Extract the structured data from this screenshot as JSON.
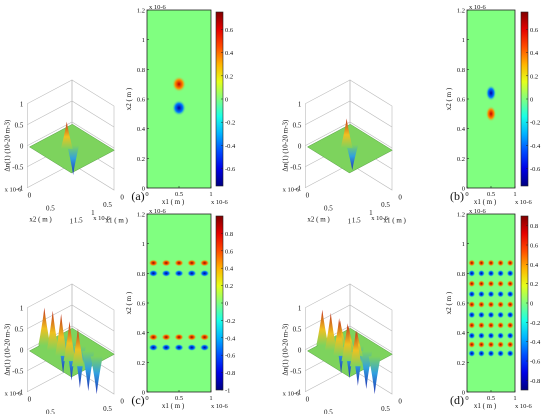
{
  "figure": {
    "title": ""
  },
  "chart_data": [
    {
      "id": "a",
      "type": "heatmap",
      "panel_label": "(a)",
      "surface": {
        "zlabel": "Δn(1) (10-20 m-3)",
        "zticks": [
          "1",
          "0.5",
          "0",
          "-0.5",
          "-1"
        ],
        "x_label": "x2 ( m )",
        "x_exp": "x 10-6",
        "x_ticks": [
          "0",
          "0.5",
          "1"
        ],
        "y_label": "x1 ( m )",
        "y_exp": "x 10-6",
        "y_ticks": [
          "0",
          "0.5",
          "1",
          "1.5"
        ],
        "peaks": [
          {
            "x": 0.5,
            "y": 0.7,
            "value": 0.65
          },
          {
            "x": 0.5,
            "y": 0.53,
            "value": -0.7
          }
        ]
      },
      "map": {
        "xlabel": "x1 ( m )",
        "x_exp": "x 10-6",
        "ylabel": "x2 ( m )",
        "y_exp": "x 10-6",
        "x_ticks": [
          "0",
          "0.5",
          "1"
        ],
        "y_ticks": [
          "1.2",
          "1",
          "0.8",
          "0.6",
          "0.4",
          "0.2",
          "0"
        ],
        "xlim": [
          0,
          1
        ],
        "ylim": [
          0,
          1.2
        ],
        "peaks": [
          {
            "x": 0.5,
            "y": 0.7,
            "value": 0.65
          },
          {
            "x": 0.5,
            "y": 0.54,
            "value": -0.7
          }
        ]
      },
      "colorbar": {
        "ticks": [
          "0.6",
          "0.4",
          "0.2",
          "0",
          "-0.2",
          "-0.4",
          "-0.6"
        ],
        "range": [
          -0.75,
          0.75
        ]
      }
    },
    {
      "id": "b",
      "type": "heatmap",
      "panel_label": "(b)",
      "surface": {
        "zlabel": "Δn(1) (10-20 m-3)",
        "zticks": [
          "1",
          "0.5",
          "0",
          "-0.5",
          "-1"
        ],
        "x_label": "x2 ( m )",
        "x_exp": "x 10-6",
        "x_ticks": [
          "0",
          "0.5",
          "1"
        ],
        "y_label": "x1 ( m )",
        "y_exp": "x 10-6",
        "y_ticks": [
          "0",
          "0.5",
          "1",
          "1.5"
        ],
        "peaks": [
          {
            "x": 0.5,
            "y": 0.65,
            "value": 0.7
          },
          {
            "x": 0.5,
            "y": 0.5,
            "value": -0.6
          }
        ]
      },
      "map": {
        "xlabel": "x1 ( m )",
        "x_exp": "x 10-6",
        "ylabel": "x2 ( m )",
        "y_exp": "x 10-6",
        "x_ticks": [
          "0",
          "0.5",
          "1"
        ],
        "y_ticks": [
          "1.2",
          "1",
          "0.8",
          "0.6",
          "0.4",
          "0.2",
          "0"
        ],
        "xlim": [
          0,
          1
        ],
        "ylim": [
          0,
          1.2
        ],
        "peaks": [
          {
            "x": 0.5,
            "y": 0.64,
            "value": -0.7
          },
          {
            "x": 0.5,
            "y": 0.5,
            "value": 0.65
          }
        ]
      },
      "colorbar": {
        "ticks": [
          "0.6",
          "0.4",
          "0.2",
          "0",
          "-0.2",
          "-0.4",
          "-0.6"
        ],
        "range": [
          -0.75,
          0.75
        ]
      }
    },
    {
      "id": "c",
      "type": "heatmap",
      "panel_label": "(c)",
      "surface": {
        "zlabel": "Δn(1) (10-20 m-3)",
        "zticks": [
          "1",
          "0.5",
          "0",
          "-0.5",
          "-1"
        ],
        "x_label": "x2 ( m )",
        "x_exp": "x 10-6",
        "x_ticks": [
          "0",
          "0.5",
          "1"
        ],
        "y_label": "x1 ( m )",
        "y_exp": "x 10-6",
        "y_ticks": [
          "0",
          "0.5",
          "1",
          "1.5"
        ],
        "peaks": [
          {
            "x": 0.1,
            "y": 0.85,
            "value": 0.9
          },
          {
            "x": 0.3,
            "y": 0.85,
            "value": 0.95
          },
          {
            "x": 0.5,
            "y": 0.85,
            "value": 1.0
          },
          {
            "x": 0.7,
            "y": 0.85,
            "value": 0.95
          },
          {
            "x": 0.9,
            "y": 0.85,
            "value": 0.9
          },
          {
            "x": 0.1,
            "y": 0.35,
            "value": -0.9
          },
          {
            "x": 0.3,
            "y": 0.35,
            "value": -0.95
          },
          {
            "x": 0.5,
            "y": 0.35,
            "value": -1.0
          },
          {
            "x": 0.7,
            "y": 0.35,
            "value": -0.95
          },
          {
            "x": 0.9,
            "y": 0.35,
            "value": -0.9
          }
        ]
      },
      "map": {
        "xlabel": "x1 ( m )",
        "x_exp": "x 10-6",
        "ylabel": "x2 ( m )",
        "y_exp": "x 10-6",
        "x_ticks": [
          "0",
          "0.5",
          "1"
        ],
        "y_ticks": [
          "1.2",
          "1",
          "0.8",
          "0.6",
          "0.4",
          "0.2",
          "0"
        ],
        "xlim": [
          0,
          1
        ],
        "ylim": [
          0,
          1.2
        ],
        "row_pairs": [
          {
            "y_upper": 0.87,
            "y_lower": 0.8
          },
          {
            "y_upper": 0.37,
            "y_lower": 0.3
          }
        ],
        "columns": [
          0.1,
          0.3,
          0.5,
          0.7,
          0.9
        ]
      },
      "colorbar": {
        "ticks": [
          "0.8",
          "0.6",
          "0.4",
          "0.2",
          "0",
          "-0.2",
          "-0.4",
          "-0.6",
          "-0.8",
          "-1"
        ],
        "range": [
          -1,
          1
        ]
      }
    },
    {
      "id": "d",
      "type": "heatmap",
      "panel_label": "(d)",
      "surface": {
        "zlabel": "Δn(1) (10-20 m-3)",
        "zticks": [
          "1",
          "0.5",
          "0",
          "-0.5",
          "-1"
        ],
        "x_label": "x2 ( m )",
        "x_exp": "x 10-6",
        "x_ticks": [
          "0",
          "0.5",
          "1"
        ],
        "y_label": "x1 ( m )",
        "y_exp": "x 10-6",
        "y_ticks": [
          "0",
          "0.5",
          "1",
          "1.5"
        ],
        "peaks": [
          {
            "x": 0.1,
            "y": 0.85,
            "value": 0.85
          },
          {
            "x": 0.3,
            "y": 0.85,
            "value": 0.9
          },
          {
            "x": 0.5,
            "y": 0.85,
            "value": 0.9
          },
          {
            "x": 0.7,
            "y": 0.85,
            "value": 0.9
          },
          {
            "x": 0.9,
            "y": 0.85,
            "value": 0.85
          },
          {
            "x": 0.3,
            "y": 0.6,
            "value": 0.6
          },
          {
            "x": 0.5,
            "y": 0.6,
            "value": 0.6
          },
          {
            "x": 0.7,
            "y": 0.6,
            "value": 0.6
          },
          {
            "x": 0.1,
            "y": 0.35,
            "value": -0.9
          },
          {
            "x": 0.3,
            "y": 0.35,
            "value": -0.9
          },
          {
            "x": 0.5,
            "y": 0.35,
            "value": -0.95
          },
          {
            "x": 0.7,
            "y": 0.35,
            "value": -0.9
          },
          {
            "x": 0.9,
            "y": 0.35,
            "value": -0.9
          }
        ]
      },
      "map": {
        "xlabel": "x1 ( m )",
        "x_exp": "x 10-6",
        "ylabel": "x2 ( m )",
        "y_exp": "x 10-6",
        "x_ticks": [
          "0",
          "0.5",
          "1"
        ],
        "y_ticks": [
          "1.2",
          "1",
          "0.8",
          "0.6",
          "0.4",
          "0.2",
          "0"
        ],
        "xlim": [
          0,
          1
        ],
        "ylim": [
          0,
          1.2
        ],
        "row_pairs": [
          {
            "y_upper": 0.87,
            "y_lower": 0.8
          },
          {
            "y_upper": 0.73,
            "y_lower": 0.66
          },
          {
            "y_upper": 0.59,
            "y_lower": 0.52
          },
          {
            "y_upper": 0.45,
            "y_lower": 0.38
          },
          {
            "y_upper": 0.32,
            "y_lower": 0.26
          }
        ],
        "columns": [
          0.1,
          0.3,
          0.5,
          0.7,
          0.9
        ]
      },
      "colorbar": {
        "ticks": [
          "0.8",
          "0.6",
          "0.4",
          "0.2",
          "0",
          "-0.2",
          "-0.4",
          "-0.6",
          "-0.8"
        ],
        "range": [
          -0.9,
          0.9
        ]
      }
    }
  ]
}
